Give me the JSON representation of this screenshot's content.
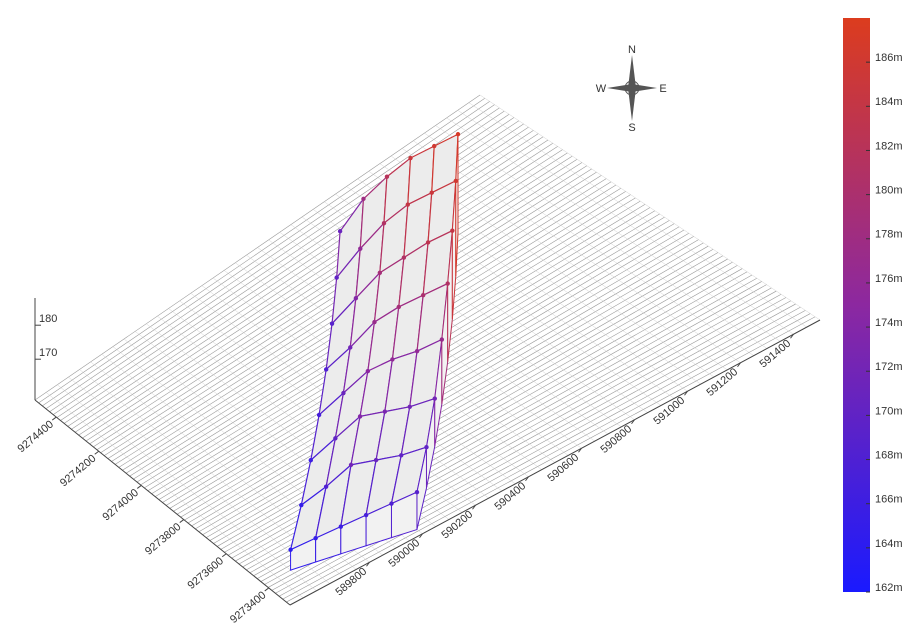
{
  "chart_data": {
    "type": "surface3d",
    "z": [
      [
        164,
        165,
        166,
        167,
        168,
        169
      ],
      [
        165,
        168,
        172,
        171,
        170,
        170
      ],
      [
        166,
        170,
        174,
        173,
        172,
        172
      ],
      [
        167,
        171,
        175,
        176,
        176,
        177
      ],
      [
        168,
        172,
        177,
        179,
        180,
        181
      ],
      [
        169,
        174,
        179,
        181,
        183,
        184
      ],
      [
        170,
        176,
        181,
        184,
        185,
        186
      ],
      [
        171,
        178,
        182,
        185,
        186,
        187
      ]
    ],
    "zlim": [
      158,
      188
    ],
    "zticks": [
      170,
      180
    ],
    "xlim": [
      589500,
      591500
    ],
    "xticks": [
      589800,
      590000,
      590200,
      590400,
      590600,
      590800,
      591000,
      591200,
      591400
    ],
    "ylim": [
      9273300,
      9274500
    ],
    "yticks": [
      9273400,
      9273600,
      9273800,
      9274000,
      9274200,
      9274400
    ],
    "colorbar": {
      "clim": [
        162,
        188
      ],
      "ticks": [
        {
          "value": 162,
          "label": "162m"
        },
        {
          "value": 164,
          "label": "164m"
        },
        {
          "value": 166,
          "label": "166m"
        },
        {
          "value": 168,
          "label": "168m"
        },
        {
          "value": 170,
          "label": "170m"
        },
        {
          "value": 172,
          "label": "172m"
        },
        {
          "value": 174,
          "label": "174m"
        },
        {
          "value": 176,
          "label": "176m"
        },
        {
          "value": 178,
          "label": "178m"
        },
        {
          "value": 180,
          "label": "180m"
        },
        {
          "value": 182,
          "label": "182m"
        },
        {
          "value": 184,
          "label": "184m"
        },
        {
          "value": 186,
          "label": "186m"
        }
      ]
    },
    "compass": [
      "N",
      "E",
      "S",
      "W"
    ]
  }
}
